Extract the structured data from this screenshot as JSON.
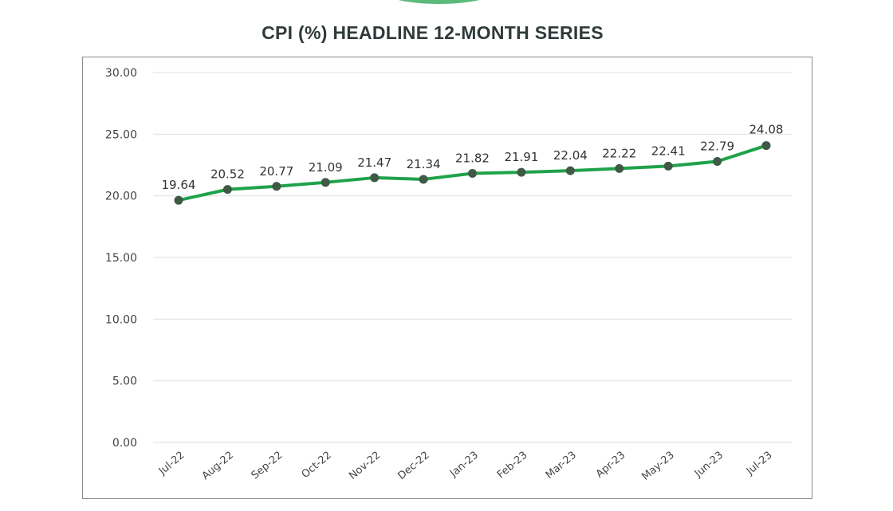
{
  "chart_data": {
    "type": "line",
    "title": "CPI (%)  HEADLINE 12-MONTH SERIES",
    "categories": [
      "Jul-22",
      "Aug-22",
      "Sep-22",
      "Oct-22",
      "Nov-22",
      "Dec-22",
      "Jan-23",
      "Feb-23",
      "Mar-23",
      "Apr-23",
      "May-23",
      "Jun-23",
      "Jul-23"
    ],
    "values": [
      19.64,
      20.52,
      20.77,
      21.09,
      21.47,
      21.34,
      21.82,
      21.91,
      22.04,
      22.22,
      22.41,
      22.79,
      24.08
    ],
    "value_labels": [
      "19.64",
      "20.52",
      "20.77",
      "21.09",
      "21.47",
      "21.34",
      "21.82",
      "21.91",
      "22.04",
      "22.22",
      "22.41",
      "22.79",
      "24.08"
    ],
    "yticks": [
      "0.00",
      "5.00",
      "10.00",
      "15.00",
      "20.00",
      "25.00",
      "30.00"
    ],
    "ylim": [
      0,
      30
    ],
    "grid": true,
    "legend": "none",
    "colors": {
      "line": "#1fa24a",
      "marker": "#3e5a45",
      "grid": "#e3e3e3",
      "title": "#2f3b3a",
      "accent": "#5cba7d"
    }
  }
}
